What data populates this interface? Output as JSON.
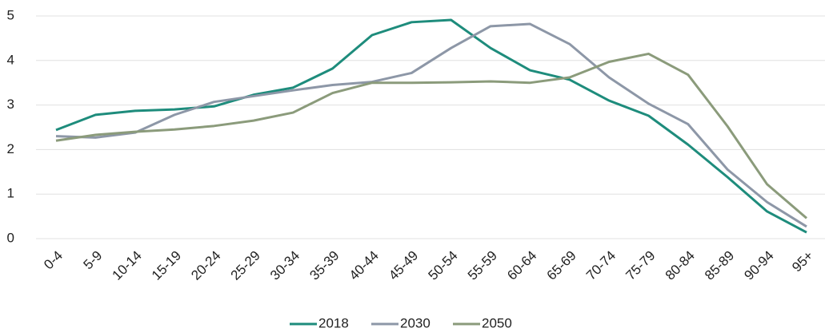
{
  "chart_data": {
    "type": "line",
    "categories": [
      "0-4",
      "5-9",
      "10-14",
      "15-19",
      "20-24",
      "25-29",
      "30-34",
      "35-39",
      "40-44",
      "45-49",
      "50-54",
      "55-59",
      "60-64",
      "65-69",
      "70-74",
      "75-79",
      "80-84",
      "85-89",
      "90-94",
      "95+"
    ],
    "series": [
      {
        "name": "2018",
        "color": "#1e8c7c",
        "values": [
          2.44,
          2.78,
          2.87,
          2.9,
          2.97,
          3.23,
          3.39,
          3.82,
          4.57,
          4.86,
          4.91,
          4.28,
          3.78,
          3.57,
          3.1,
          2.76,
          2.11,
          1.38,
          0.61,
          0.14
        ]
      },
      {
        "name": "2030",
        "color": "#8d97a7",
        "values": [
          2.3,
          2.27,
          2.38,
          2.78,
          3.07,
          3.2,
          3.33,
          3.45,
          3.52,
          3.72,
          4.28,
          4.77,
          4.82,
          4.37,
          3.62,
          3.03,
          2.57,
          1.55,
          0.82,
          0.27
        ]
      },
      {
        "name": "2050",
        "color": "#8b9b7b",
        "values": [
          2.2,
          2.33,
          2.4,
          2.45,
          2.53,
          2.65,
          2.83,
          3.27,
          3.5,
          3.5,
          3.51,
          3.53,
          3.5,
          3.62,
          3.97,
          4.15,
          3.68,
          2.52,
          1.22,
          0.46
        ]
      }
    ],
    "ylim": [
      0,
      5
    ],
    "yticks": [
      0,
      1,
      2,
      3,
      4,
      5
    ],
    "grid": true,
    "legend": "bottom"
  }
}
